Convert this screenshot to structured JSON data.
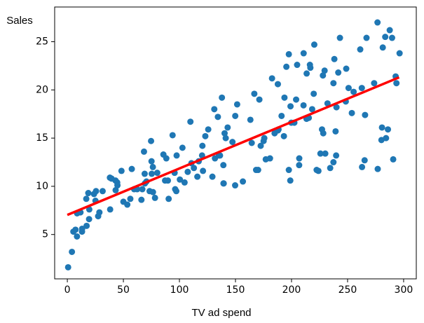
{
  "chart_data": {
    "type": "scatter",
    "xlabel": "TV ad spend",
    "ylabel": "Sales",
    "color": "#1f77b4",
    "x": [
      0.7,
      4.1,
      5.4,
      7.3,
      8.6,
      8.7,
      11.7,
      13.1,
      13.2,
      16.9,
      17.2,
      18.7,
      19.4,
      19.6,
      23.8,
      25.1,
      25.6,
      27.5,
      28.6,
      31.5,
      38.0,
      38.2,
      39.5,
      43.0,
      43.1,
      44.5,
      44.7,
      48.3,
      50.0,
      53.5,
      56.2,
      57.5,
      59.6,
      62.3,
      66.1,
      66.9,
      68.4,
      69.0,
      69.2,
      70.6,
      73.4,
      74.7,
      75.1,
      75.3,
      76.3,
      76.4,
      78.2,
      80.2,
      85.7,
      87.2,
      88.3,
      89.7,
      90.4,
      93.9,
      95.7,
      96.2,
      97.2,
      97.5,
      100.4,
      102.7,
      104.6,
      107.4,
      109.8,
      110.7,
      112.9,
      116.0,
      117.2,
      120.2,
      120.5,
      121.0,
      123.1,
      125.7,
      129.4,
      131.1,
      131.7,
      134.3,
      135.2,
      136.2,
      137.9,
      139.2,
      139.3,
      139.5,
      140.3,
      141.3,
      143.0,
      147.3,
      149.7,
      149.8,
      151.5,
      156.6,
      163.3,
      164.5,
      166.8,
      168.4,
      170.2,
      171.3,
      172.5,
      175.1,
      175.7,
      177.0,
      180.8,
      182.6,
      184.9,
      187.8,
      187.9,
      188.4,
      191.1,
      193.2,
      193.7,
      195.4,
      197.6,
      197.6,
      198.9,
      199.1,
      199.8,
      202.5,
      204.1,
      205.0,
      206.8,
      206.9,
      210.7,
      210.8,
      213.4,
      213.5,
      215.4,
      216.4,
      216.8,
      218.4,
      219.8,
      220.3,
      222.4,
      224.0,
      225.8,
      227.2,
      228.0,
      228.3,
      229.5,
      230.1,
      232.1,
      234.5,
      237.4,
      237.4,
      238.2,
      239.3,
      239.8,
      240.1,
      241.7,
      243.2,
      248.4,
      248.8,
      250.9,
      253.8,
      255.4,
      261.3,
      262.7,
      262.9,
      265.2,
      265.6,
      266.9,
      273.7,
      276.7,
      276.9,
      280.2,
      280.7,
      281.4,
      283.6,
      284.3,
      286.0,
      287.6,
      289.7,
      290.7,
      292.9,
      293.6,
      296.4
    ],
    "values": [
      1.6,
      3.2,
      5.3,
      5.5,
      4.8,
      7.2,
      7.3,
      5.3,
      5.6,
      8.7,
      5.9,
      9.3,
      6.6,
      7.6,
      9.2,
      8.5,
      9.5,
      6.9,
      7.3,
      9.5,
      10.9,
      7.6,
      10.8,
      10.6,
      9.6,
      10.4,
      10.1,
      11.6,
      8.4,
      8.1,
      8.7,
      11.8,
      9.7,
      9.7,
      8.6,
      9.7,
      13.6,
      11.3,
      10.3,
      10.5,
      9.5,
      14.7,
      12.6,
      11.3,
      12.0,
      9.4,
      8.8,
      11.4,
      13.3,
      10.6,
      12.9,
      10.6,
      8.7,
      15.3,
      11.4,
      9.7,
      9.5,
      13.2,
      10.7,
      14.0,
      10.4,
      11.5,
      16.7,
      12.4,
      11.9,
      11.0,
      12.6,
      13.2,
      14.2,
      11.6,
      15.2,
      15.9,
      11.0,
      18.0,
      12.9,
      17.2,
      13.2,
      13.2,
      19.2,
      12.2,
      10.3,
      10.3,
      15.5,
      15.0,
      16.1,
      14.6,
      10.1,
      17.3,
      18.5,
      10.5,
      16.9,
      14.5,
      19.6,
      11.7,
      11.7,
      19.0,
      14.2,
      14.7,
      15.0,
      12.8,
      12.9,
      21.2,
      15.5,
      20.6,
      15.8,
      15.9,
      17.3,
      15.2,
      19.2,
      22.4,
      11.7,
      23.7,
      10.6,
      18.3,
      16.6,
      16.6,
      19.0,
      22.6,
      12.2,
      12.9,
      18.4,
      23.8,
      17.0,
      21.7,
      17.1,
      22.6,
      22.3,
      18.0,
      19.6,
      24.7,
      11.7,
      11.6,
      13.4,
      15.9,
      21.5,
      15.5,
      22.0,
      13.4,
      18.6,
      11.9,
      12.5,
      20.7,
      23.2,
      15.7,
      13.2,
      18.2,
      21.8,
      25.4,
      18.8,
      22.2,
      20.2,
      17.6,
      19.8,
      24.2,
      20.2,
      12.0,
      12.7,
      17.4,
      25.4,
      20.7,
      27.0,
      11.8,
      14.8,
      16.1,
      24.4,
      25.5,
      15.0,
      15.9,
      26.2,
      25.4,
      12.8,
      21.4,
      20.7,
      23.8
    ],
    "line": {
      "x": [
        0,
        296
      ],
      "values": [
        7.03,
        21.3
      ],
      "color": "#ff0000"
    },
    "xlim": [
      -11.3,
      311.3
    ],
    "ylim": [
      0.4,
      28.6
    ],
    "xticks": [
      0,
      50,
      100,
      150,
      200,
      250,
      300
    ],
    "yticks": [
      5,
      10,
      15,
      20,
      25
    ]
  }
}
